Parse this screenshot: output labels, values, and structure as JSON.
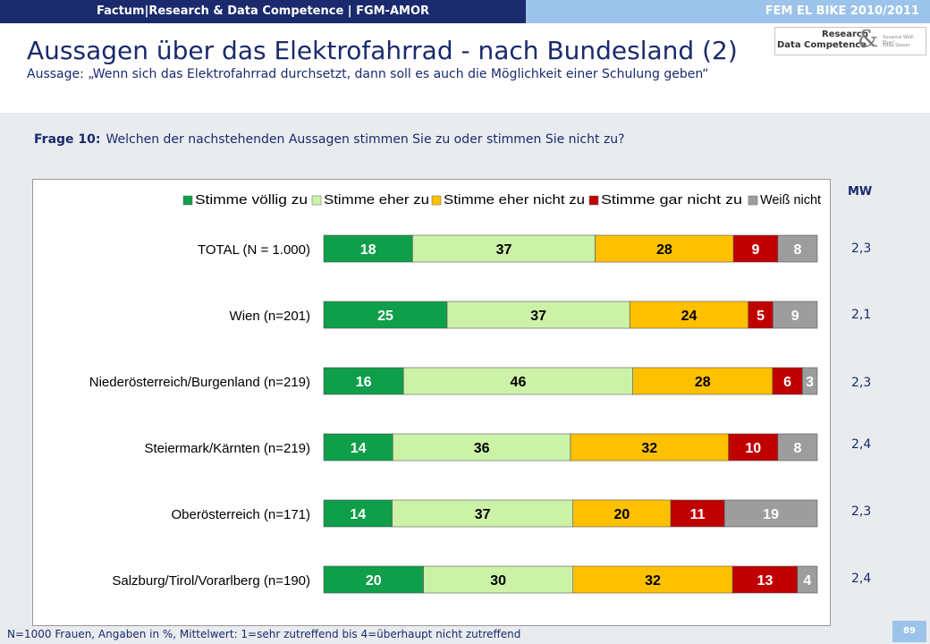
{
  "header": {
    "left_label": "Factum|Research & Data Competence | FGM-AMOR",
    "right_label": "FEM EL BIKE 2010/2011",
    "title": "Aussagen über das Elektrofahrrad - nach Bundesland (2)",
    "subtitle": "Aussage: „Wenn sich das Elektrofahrrad durchsetzt, dann soll es auch die Möglichkeit einer Schulung geben“",
    "logo_line1": "Research",
    "logo_line2": "Data Competence",
    "logo_amp": "&",
    "logo_small1": "Susanne Wolf-Eberl",
    "logo_small2": "Edda Sesser"
  },
  "question": {
    "prefix": "Frage 10:",
    "text": "Welchen der nachstehenden Aussagen stimmen Sie zu oder stimmen Sie nicht zu?"
  },
  "mw": {
    "header": "MW",
    "values": [
      "2,3",
      "2,1",
      "2,3",
      "2,4",
      "2,3",
      "2,4"
    ]
  },
  "footer": {
    "note": "N=1000 Frauen, Angaben in %, Mittelwert: 1=sehr zutreffend bis 4=überhaupt nicht zutreffend",
    "page": "89"
  },
  "chart_data": {
    "type": "bar",
    "orientation": "horizontal",
    "stacked": true,
    "unit": "%",
    "categories": [
      "TOTAL (N = 1.000)",
      "Wien (n=201)",
      "Niederösterreich/Burgenland (n=219)",
      "Steiermark/Kärnten (n=219)",
      "Oberösterreich (n=171)",
      "Salzburg/Tirol/Vorarlberg (n=190)"
    ],
    "series": [
      {
        "name": "Stimme völlig zu",
        "color": "#0f9e4a",
        "label_color": "#ffffff",
        "values": [
          18,
          25,
          16,
          14,
          14,
          20
        ]
      },
      {
        "name": "Stimme eher zu",
        "color": "#ccf2a8",
        "label_color": "#000000",
        "values": [
          37,
          37,
          46,
          36,
          37,
          30
        ]
      },
      {
        "name": "Stimme eher nicht zu",
        "color": "#ffc000",
        "label_color": "#000000",
        "values": [
          28,
          24,
          28,
          32,
          20,
          32
        ]
      },
      {
        "name": "Stimme gar nicht zu",
        "color": "#c00000",
        "label_color": "#ffffff",
        "values": [
          9,
          5,
          6,
          10,
          11,
          13
        ]
      },
      {
        "name": "Weiß nicht",
        "color": "#9d9d9d",
        "label_color": "#ffffff",
        "values": [
          8,
          9,
          3,
          8,
          19,
          4
        ]
      }
    ],
    "xlim": [
      0,
      100
    ],
    "legend_position": "top"
  }
}
